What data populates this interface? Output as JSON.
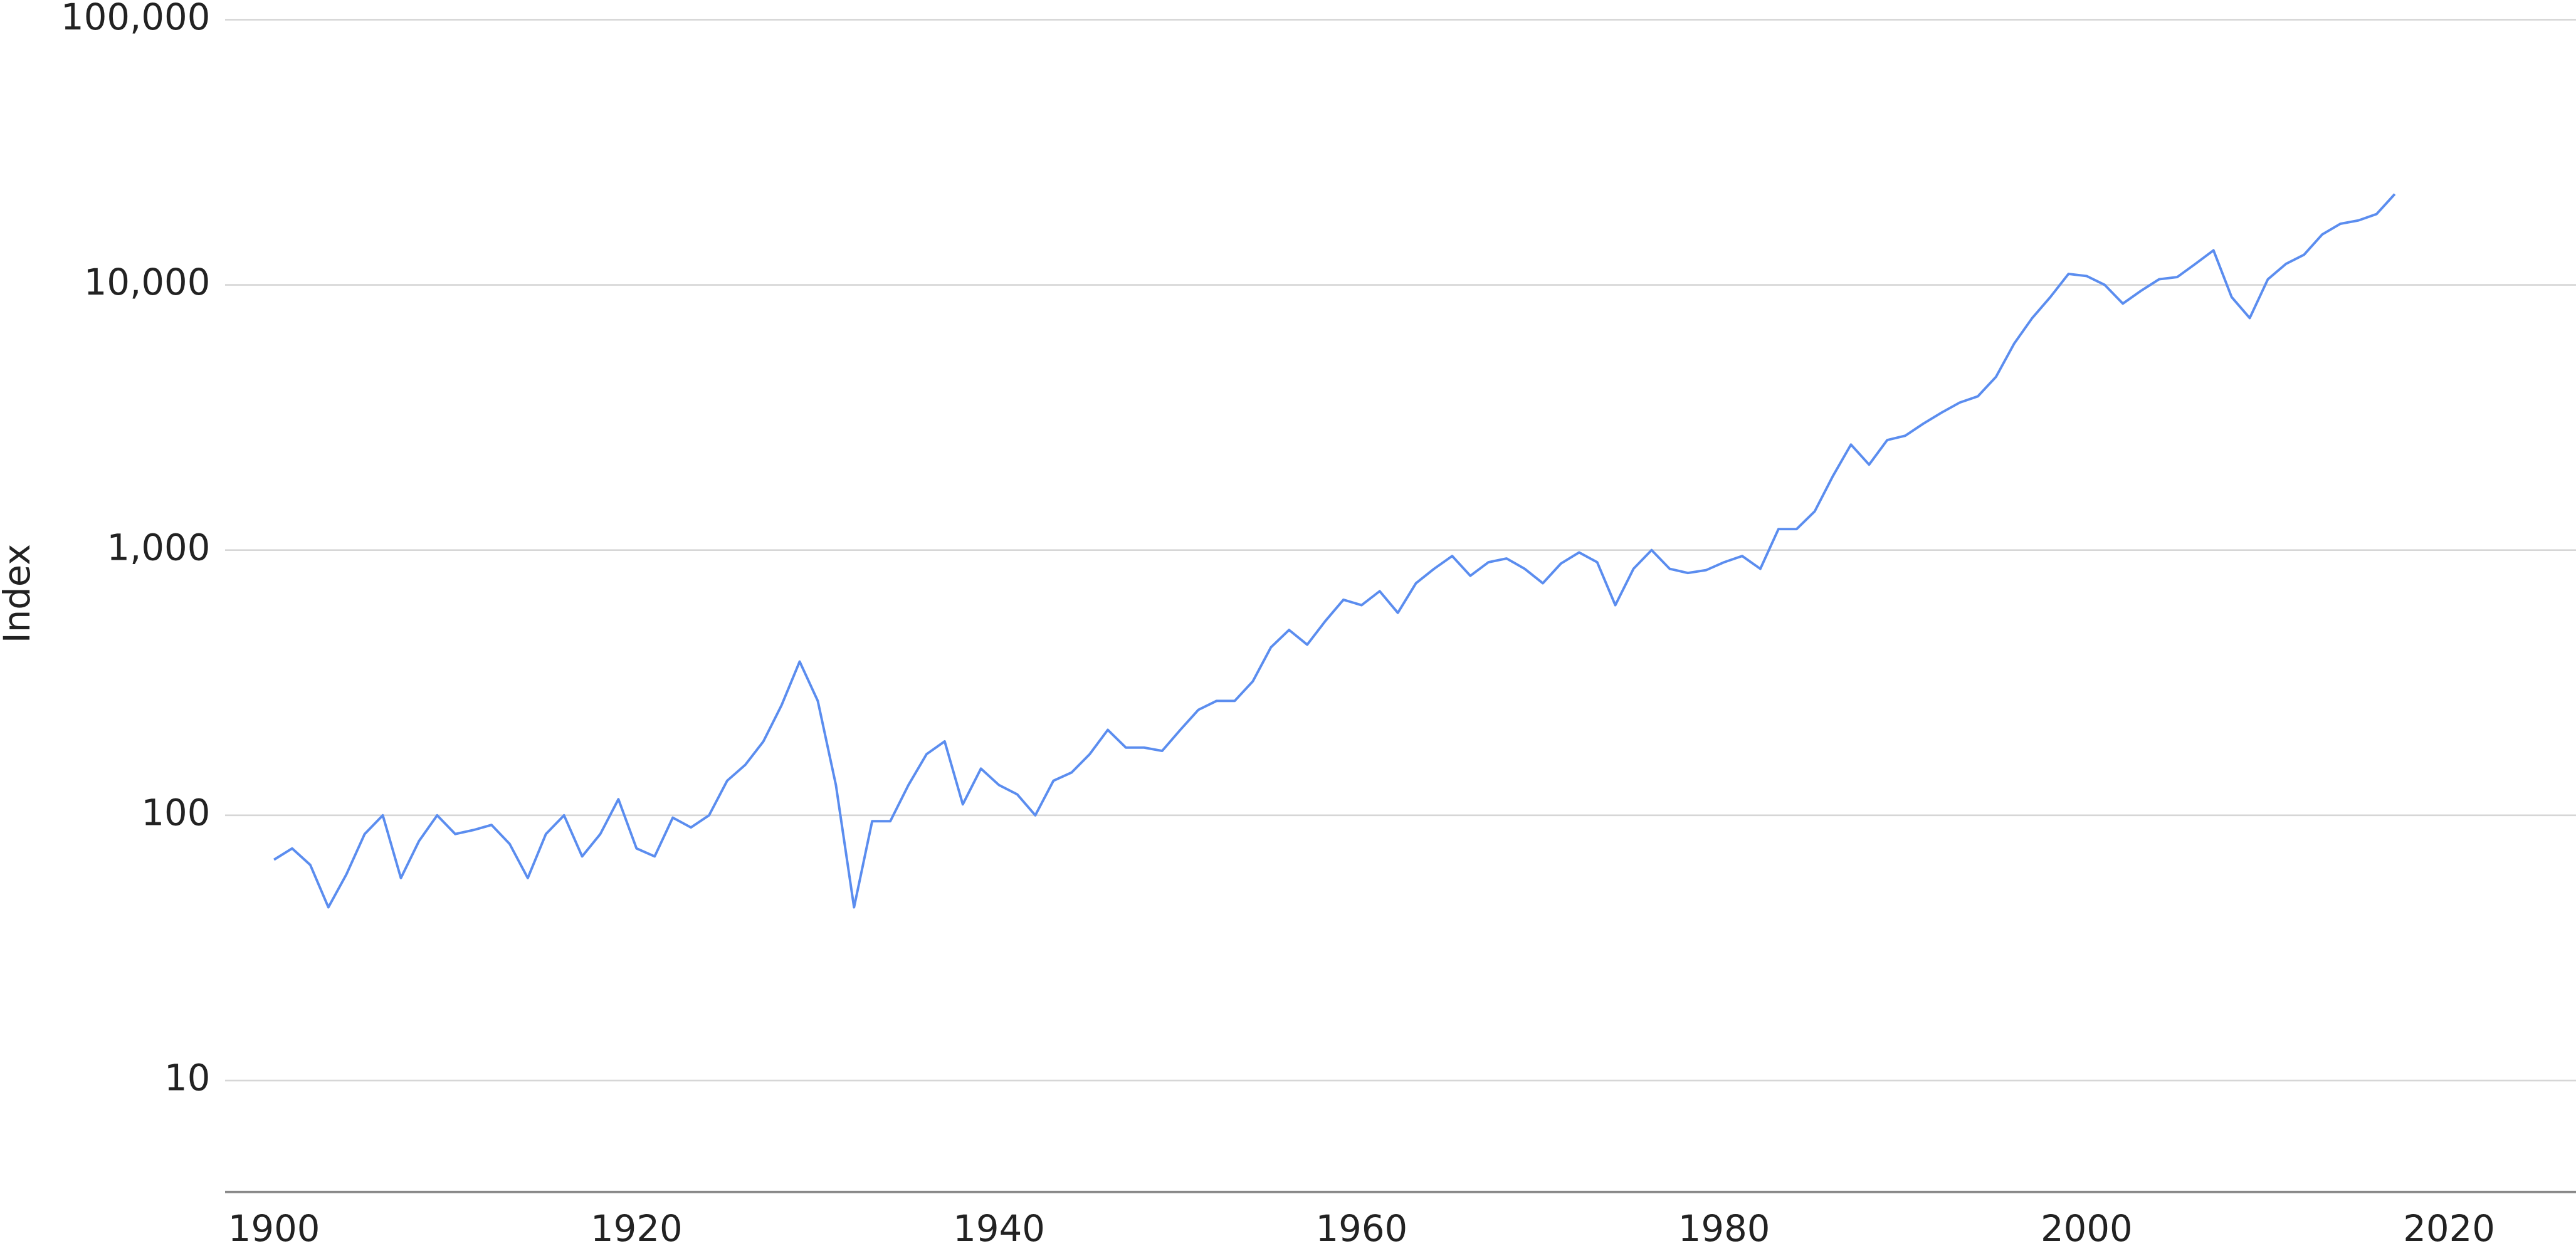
{
  "chart_data": {
    "type": "line",
    "y_label": "Index",
    "x": [
      1900,
      1901,
      1902,
      1903,
      1904,
      1905,
      1906,
      1907,
      1908,
      1909,
      1910,
      1911,
      1912,
      1913,
      1914,
      1915,
      1916,
      1917,
      1918,
      1919,
      1920,
      1921,
      1922,
      1923,
      1924,
      1925,
      1926,
      1927,
      1928,
      1929,
      1930,
      1931,
      1932,
      1933,
      1934,
      1935,
      1936,
      1937,
      1938,
      1939,
      1940,
      1941,
      1942,
      1943,
      1944,
      1945,
      1946,
      1947,
      1948,
      1949,
      1950,
      1951,
      1952,
      1953,
      1954,
      1955,
      1956,
      1957,
      1958,
      1959,
      1960,
      1961,
      1962,
      1963,
      1964,
      1965,
      1966,
      1967,
      1968,
      1969,
      1970,
      1971,
      1972,
      1973,
      1974,
      1975,
      1976,
      1977,
      1978,
      1979,
      1980,
      1981,
      1982,
      1983,
      1984,
      1985,
      1986,
      1987,
      1988,
      1989,
      1990,
      1991,
      1992,
      1993,
      1994,
      1995,
      1996,
      1997,
      1998,
      1999,
      2000,
      2001,
      2002,
      2003,
      2004,
      2005,
      2006,
      2007,
      2008,
      2009,
      2010,
      2011,
      2012,
      2013,
      2014,
      2015,
      2016,
      2017
    ],
    "series": [
      {
        "name": "Index",
        "color": "#5b8def",
        "values": [
          68,
          75,
          65,
          45,
          60,
          85,
          100,
          58,
          80,
          100,
          85,
          88,
          92,
          78,
          58,
          85,
          100,
          70,
          85,
          115,
          75,
          70,
          98,
          90,
          100,
          135,
          155,
          190,
          260,
          380,
          270,
          130,
          45,
          95,
          95,
          130,
          170,
          190,
          110,
          150,
          130,
          120,
          100,
          135,
          145,
          170,
          210,
          180,
          180,
          175,
          210,
          250,
          270,
          270,
          320,
          430,
          500,
          440,
          540,
          650,
          620,
          700,
          580,
          750,
          850,
          950,
          800,
          900,
          930,
          850,
          750,
          890,
          980,
          900,
          620,
          850,
          1000,
          850,
          820,
          840,
          900,
          950,
          850,
          1200,
          1200,
          1400,
          1900,
          2500,
          2100,
          2600,
          2700,
          3000,
          3300,
          3600,
          3800,
          4500,
          6000,
          7500,
          9000,
          11000,
          10800,
          10000,
          8500,
          9500,
          10500,
          10700,
          12000,
          13500,
          9000,
          7500,
          10500,
          12000,
          13000,
          15500,
          17000,
          17500,
          18500,
          22000
        ]
      }
    ],
    "log_y": true,
    "ylim": [
      3.8,
      100000
    ],
    "yticks": [
      10,
      100,
      {
        "value": 1000,
        "label": "1,000"
      },
      {
        "value": 10000,
        "label": "10,000"
      },
      {
        "value": 100000,
        "label": "100,000"
      }
    ],
    "xlim": [
      1897.3,
      2027
    ],
    "xticks": [
      1900,
      1920,
      1940,
      1960,
      1980,
      2000,
      2020
    ],
    "grid": true
  }
}
